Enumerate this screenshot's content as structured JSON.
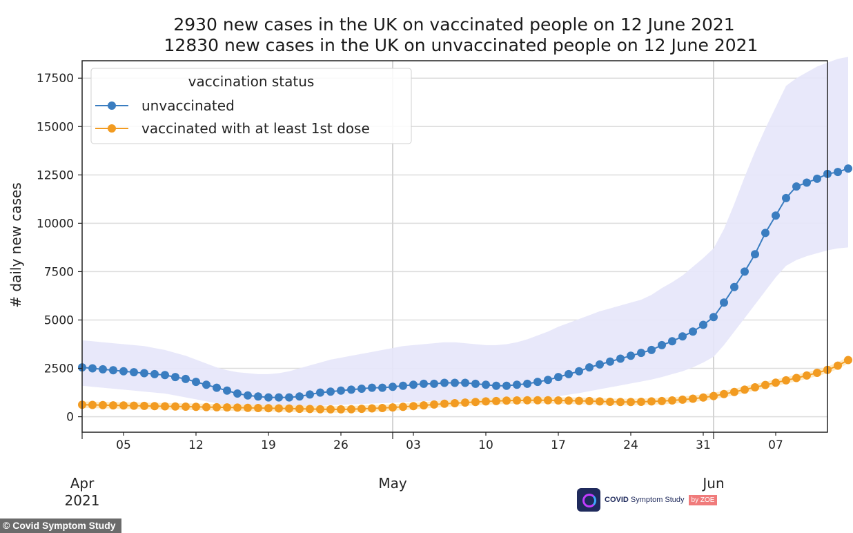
{
  "chart_data": {
    "type": "line",
    "title": [
      "2930 new cases in the UK on vaccinated people on 12 June 2021",
      "12830 new cases in the UK on unvaccinated people on 12 June 2021"
    ],
    "ylabel": "# daily new cases",
    "xlabel": "",
    "ylim": [
      -800,
      18400
    ],
    "xlim": [
      "2021-04-01",
      "2021-06-12"
    ],
    "yticks": [
      0,
      2500,
      5000,
      7500,
      10000,
      12500,
      15000,
      17500
    ],
    "xticks": [
      {
        "date": "2021-04-05",
        "label": "05"
      },
      {
        "date": "2021-04-12",
        "label": "12"
      },
      {
        "date": "2021-04-19",
        "label": "19"
      },
      {
        "date": "2021-04-26",
        "label": "26"
      },
      {
        "date": "2021-05-03",
        "label": "03"
      },
      {
        "date": "2021-05-10",
        "label": "10"
      },
      {
        "date": "2021-05-17",
        "label": "17"
      },
      {
        "date": "2021-05-24",
        "label": "24"
      },
      {
        "date": "2021-05-31",
        "label": "31"
      },
      {
        "date": "2021-06-07",
        "label": "07"
      }
    ],
    "months": [
      {
        "date": "2021-04-01",
        "label": "Apr",
        "year": "2021"
      },
      {
        "date": "2021-05-01",
        "label": "May",
        "year": ""
      },
      {
        "date": "2021-06-01",
        "label": "Jun",
        "year": ""
      }
    ],
    "grid": true,
    "legend": {
      "title": "vaccination status",
      "position": "top-left"
    },
    "series": [
      {
        "name": "unvaccinated",
        "color": "#3a7dc0",
        "band_color": "#e6e6fa",
        "start_date": "2021-04-01",
        "values": [
          2550,
          2500,
          2450,
          2400,
          2350,
          2300,
          2250,
          2200,
          2150,
          2050,
          1950,
          1800,
          1650,
          1500,
          1350,
          1200,
          1100,
          1050,
          1000,
          1000,
          1000,
          1050,
          1150,
          1250,
          1300,
          1350,
          1400,
          1450,
          1500,
          1500,
          1550,
          1600,
          1650,
          1700,
          1700,
          1750,
          1750,
          1750,
          1700,
          1650,
          1600,
          1600,
          1650,
          1700,
          1800,
          1900,
          2050,
          2200,
          2350,
          2550,
          2700,
          2850,
          3000,
          3150,
          3300,
          3450,
          3700,
          3900,
          4150,
          4400,
          4750,
          5150,
          5900,
          6700,
          7500,
          8400,
          9500,
          10400,
          11300,
          11900,
          12100,
          12300,
          12550,
          12650,
          12830
        ],
        "lower": [
          1600,
          1550,
          1500,
          1450,
          1400,
          1350,
          1300,
          1250,
          1200,
          1100,
          1000,
          900,
          800,
          700,
          600,
          550,
          500,
          480,
          460,
          450,
          450,
          480,
          520,
          560,
          600,
          620,
          640,
          660,
          680,
          700,
          720,
          750,
          780,
          800,
          820,
          840,
          860,
          870,
          860,
          850,
          840,
          840,
          860,
          880,
          920,
          980,
          1060,
          1140,
          1220,
          1320,
          1420,
          1520,
          1620,
          1720,
          1820,
          1920,
          2050,
          2200,
          2350,
          2550,
          2800,
          3100,
          3700,
          4400,
          5100,
          5800,
          6500,
          7200,
          7800,
          8100,
          8300,
          8450,
          8600,
          8700,
          8750
        ],
        "upper": [
          3950,
          3900,
          3850,
          3800,
          3750,
          3700,
          3650,
          3550,
          3450,
          3300,
          3150,
          2950,
          2750,
          2550,
          2400,
          2300,
          2250,
          2200,
          2200,
          2250,
          2350,
          2500,
          2650,
          2800,
          2950,
          3050,
          3150,
          3250,
          3350,
          3450,
          3550,
          3650,
          3700,
          3750,
          3800,
          3850,
          3850,
          3800,
          3750,
          3700,
          3700,
          3750,
          3850,
          4000,
          4200,
          4400,
          4650,
          4850,
          5050,
          5250,
          5450,
          5600,
          5750,
          5900,
          6050,
          6300,
          6650,
          6950,
          7300,
          7750,
          8200,
          8700,
          9700,
          11000,
          12400,
          13700,
          14900,
          16000,
          17100,
          17500,
          17800,
          18100,
          18300,
          18500,
          18600
        ]
      },
      {
        "name": "vaccinated with at least 1st dose",
        "color": "#f29b21",
        "band_color": "#fde8bf",
        "start_date": "2021-04-01",
        "values": [
          620,
          610,
          600,
          590,
          580,
          570,
          560,
          550,
          540,
          530,
          520,
          510,
          500,
          490,
          480,
          470,
          460,
          450,
          440,
          430,
          420,
          410,
          400,
          390,
          380,
          380,
          390,
          410,
          430,
          450,
          480,
          510,
          550,
          590,
          630,
          670,
          700,
          730,
          760,
          790,
          810,
          830,
          840,
          850,
          850,
          850,
          840,
          830,
          820,
          810,
          790,
          770,
          760,
          760,
          770,
          790,
          810,
          840,
          880,
          930,
          990,
          1070,
          1170,
          1280,
          1400,
          1520,
          1640,
          1760,
          1880,
          2000,
          2130,
          2270,
          2420,
          2640,
          2930
        ],
        "lower": [
          450,
          440,
          430,
          420,
          410,
          400,
          390,
          380,
          370,
          360,
          350,
          340,
          330,
          320,
          310,
          300,
          290,
          280,
          270,
          260,
          250,
          240,
          230,
          220,
          210,
          210,
          220,
          240,
          260,
          280,
          310,
          340,
          380,
          420,
          460,
          500,
          530,
          560,
          590,
          620,
          640,
          660,
          670,
          680,
          680,
          680,
          670,
          660,
          650,
          640,
          620,
          600,
          590,
          590,
          600,
          620,
          640,
          670,
          710,
          760,
          820,
          900,
          1000,
          1110,
          1230,
          1350,
          1470,
          1590,
          1710,
          1830,
          1960,
          2100,
          2250,
          2470,
          2760
        ],
        "upper": [
          790,
          780,
          770,
          760,
          750,
          740,
          730,
          720,
          710,
          700,
          690,
          680,
          670,
          660,
          650,
          640,
          630,
          620,
          610,
          600,
          590,
          580,
          570,
          560,
          550,
          550,
          560,
          580,
          600,
          620,
          650,
          680,
          720,
          760,
          800,
          840,
          870,
          900,
          930,
          960,
          980,
          1000,
          1010,
          1020,
          1020,
          1020,
          1010,
          1000,
          990,
          980,
          960,
          940,
          930,
          930,
          940,
          960,
          980,
          1010,
          1050,
          1100,
          1160,
          1240,
          1340,
          1450,
          1570,
          1690,
          1810,
          1930,
          2050,
          2170,
          2300,
          2440,
          2590,
          2810,
          3100
        ]
      }
    ]
  },
  "credit": "© Covid Symptom Study",
  "logo": {
    "name": "COVID",
    "name_rest": "Symptom Study",
    "badge": "by ZOE"
  }
}
